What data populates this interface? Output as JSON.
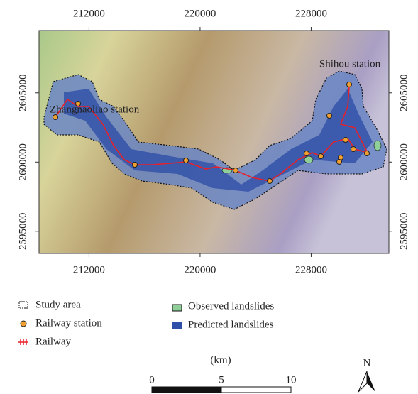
{
  "map": {
    "xlim": [
      208400,
      233600
    ],
    "ylim": [
      2593400,
      2609500
    ],
    "xticks": [
      212000,
      220000,
      228000
    ],
    "yticks": [
      2595000,
      2600000,
      2605000
    ],
    "place_labels": [
      "Zhangnaoliao station",
      "Shihou station"
    ]
  },
  "legend": [
    "Study area",
    "Railway station",
    "Railway",
    "Observed landslides",
    "Predicted landslides"
  ],
  "scale_bar": {
    "unit": "(km)",
    "ticks": [
      0,
      5,
      10
    ]
  },
  "north_arrow": "N"
}
